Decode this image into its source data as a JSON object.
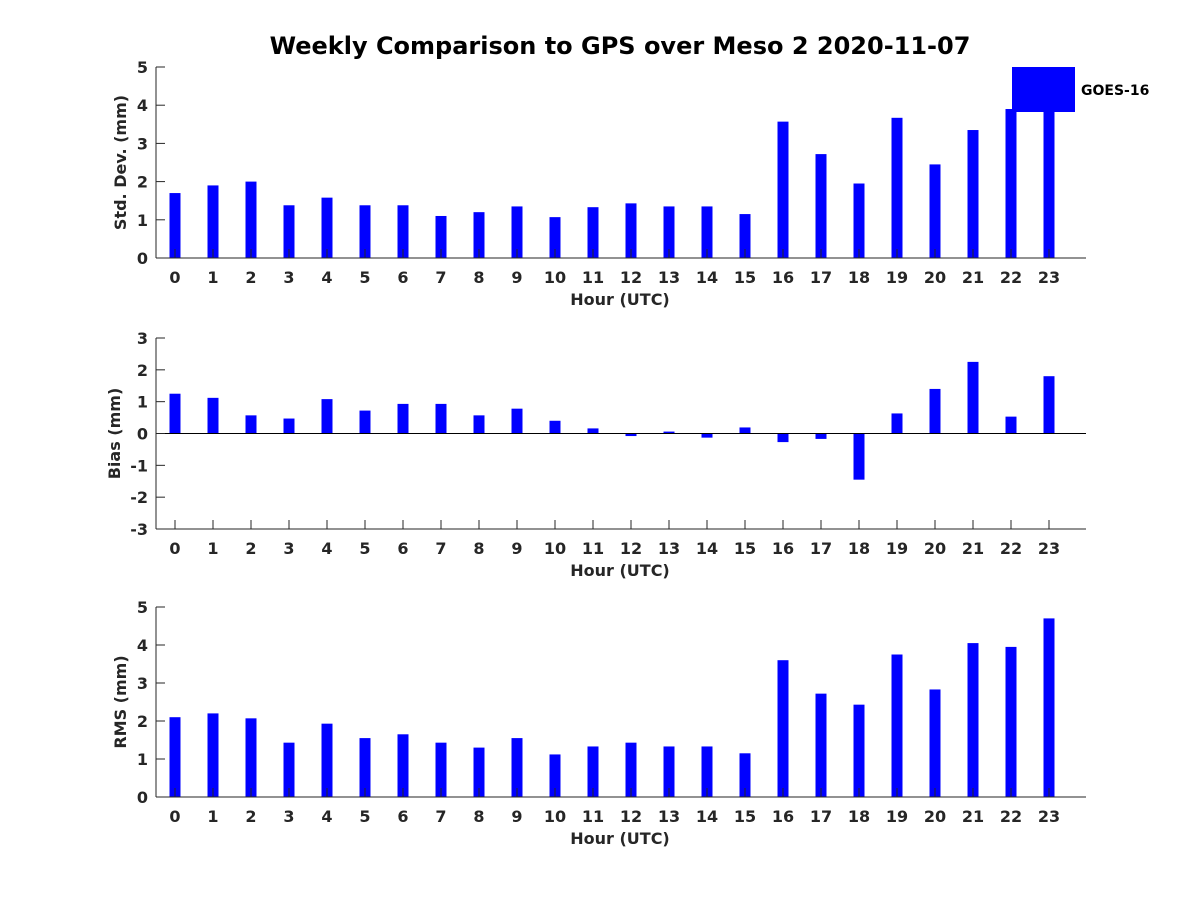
{
  "title": "Weekly Comparison to GPS over Meso 2 2020-11-07",
  "colors": {
    "bar": "#0000ff",
    "axis": "#262626",
    "background": "#ffffff"
  },
  "legend": {
    "label": "GOES-16",
    "placement": "top-right"
  },
  "chart_data": [
    {
      "type": "bar",
      "name": "std-dev",
      "categories": [
        "0",
        "1",
        "2",
        "3",
        "4",
        "5",
        "6",
        "7",
        "8",
        "9",
        "10",
        "11",
        "12",
        "13",
        "14",
        "15",
        "16",
        "17",
        "18",
        "19",
        "20",
        "21",
        "22",
        "23"
      ],
      "series": [
        {
          "name": "GOES-16",
          "values": [
            1.7,
            1.9,
            2.0,
            1.38,
            1.58,
            1.38,
            1.38,
            1.1,
            1.2,
            1.35,
            1.07,
            1.33,
            1.43,
            1.35,
            1.35,
            1.15,
            3.57,
            2.72,
            1.95,
            3.67,
            2.45,
            3.35,
            3.9,
            3.95
          ]
        }
      ],
      "xlabel": "Hour (UTC)",
      "ylabel": "Std. Dev. (mm)",
      "yticks": [
        "0",
        "1",
        "2",
        "3",
        "4",
        "5"
      ],
      "ylim": [
        0,
        5
      ],
      "grid": false
    },
    {
      "type": "bar",
      "name": "bias",
      "categories": [
        "0",
        "1",
        "2",
        "3",
        "4",
        "5",
        "6",
        "7",
        "8",
        "9",
        "10",
        "11",
        "12",
        "13",
        "14",
        "15",
        "16",
        "17",
        "18",
        "19",
        "20",
        "21",
        "22",
        "23"
      ],
      "series": [
        {
          "name": "GOES-16",
          "values": [
            1.25,
            1.12,
            0.57,
            0.47,
            1.08,
            0.72,
            0.93,
            0.93,
            0.57,
            0.78,
            0.4,
            0.16,
            -0.08,
            0.06,
            -0.13,
            0.19,
            -0.27,
            -0.17,
            -1.45,
            0.63,
            1.4,
            2.25,
            0.53,
            1.8
          ]
        }
      ],
      "xlabel": "Hour (UTC)",
      "ylabel": "Bias (mm)",
      "yticks": [
        "-3",
        "-2",
        "-1",
        "0",
        "1",
        "2",
        "3"
      ],
      "ylim": [
        -3,
        3
      ],
      "zero_line": true,
      "grid": false
    },
    {
      "type": "bar",
      "name": "rms",
      "categories": [
        "0",
        "1",
        "2",
        "3",
        "4",
        "5",
        "6",
        "7",
        "8",
        "9",
        "10",
        "11",
        "12",
        "13",
        "14",
        "15",
        "16",
        "17",
        "18",
        "19",
        "20",
        "21",
        "22",
        "23"
      ],
      "series": [
        {
          "name": "GOES-16",
          "values": [
            2.1,
            2.2,
            2.07,
            1.43,
            1.93,
            1.55,
            1.65,
            1.43,
            1.3,
            1.55,
            1.12,
            1.33,
            1.43,
            1.33,
            1.33,
            1.15,
            3.6,
            2.72,
            2.43,
            3.75,
            2.83,
            4.05,
            3.95,
            4.7
          ]
        }
      ],
      "xlabel": "Hour (UTC)",
      "ylabel": "RMS (mm)",
      "yticks": [
        "0",
        "1",
        "2",
        "3",
        "4",
        "5"
      ],
      "ylim": [
        0,
        5
      ],
      "grid": false
    }
  ]
}
